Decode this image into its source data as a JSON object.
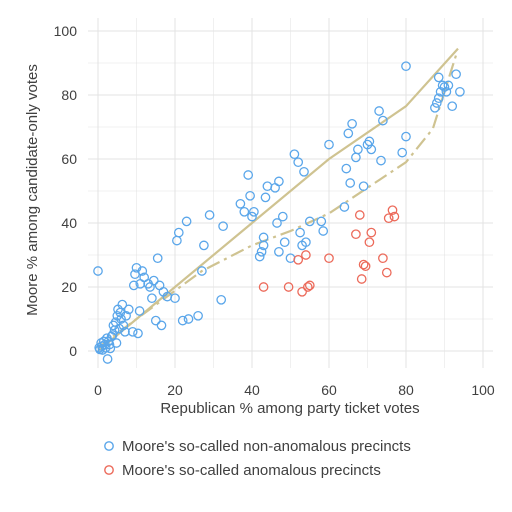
{
  "chart_data": {
    "type": "scatter",
    "title": "",
    "xlabel": "Republican % among party ticket votes",
    "ylabel": "Moore % among candidate-only votes",
    "xlim": [
      0,
      100
    ],
    "ylim": [
      0,
      100
    ],
    "x_ticks": [
      0,
      20,
      40,
      60,
      80,
      100
    ],
    "y_ticks": [
      0,
      20,
      40,
      60,
      80,
      100
    ],
    "grid": true,
    "legend_position": "bottom",
    "colors": {
      "non_anomalous": "#5aa6ea",
      "anomalous": "#ec6a5a",
      "fit_line": "#cfc391",
      "text": "#404040",
      "grid": "#e3e3e3"
    },
    "series": [
      {
        "name": "Moore's so-called non-anomalous precincts",
        "marker": "circle-open",
        "points": [
          [
            0,
            25
          ],
          [
            0.3,
            1
          ],
          [
            0.5,
            0.5
          ],
          [
            0.8,
            2.5
          ],
          [
            1,
            1.5
          ],
          [
            1.2,
            0.3
          ],
          [
            1.5,
            3
          ],
          [
            1.8,
            2
          ],
          [
            2,
            1
          ],
          [
            2.3,
            4
          ],
          [
            2.5,
            -2.5
          ],
          [
            2.7,
            3
          ],
          [
            3,
            2
          ],
          [
            3.2,
            0.8
          ],
          [
            3.5,
            4.5
          ],
          [
            3.8,
            5
          ],
          [
            4,
            8
          ],
          [
            4.3,
            6.5
          ],
          [
            4.6,
            9
          ],
          [
            4.8,
            2.5
          ],
          [
            5,
            11
          ],
          [
            5.2,
            13
          ],
          [
            5.5,
            7
          ],
          [
            5.8,
            12
          ],
          [
            6,
            10
          ],
          [
            6.3,
            14.5
          ],
          [
            6.6,
            8
          ],
          [
            7,
            6
          ],
          [
            7.3,
            11
          ],
          [
            8,
            13
          ],
          [
            9,
            6
          ],
          [
            9.3,
            20.5
          ],
          [
            9.6,
            24
          ],
          [
            10,
            26
          ],
          [
            10.4,
            5.5
          ],
          [
            10.8,
            12.5
          ],
          [
            11,
            21
          ],
          [
            11.5,
            25
          ],
          [
            12,
            23
          ],
          [
            13,
            21
          ],
          [
            13.5,
            20
          ],
          [
            14,
            16.5
          ],
          [
            14.5,
            22
          ],
          [
            15,
            9.5
          ],
          [
            15.5,
            29
          ],
          [
            16,
            20.5
          ],
          [
            16.5,
            8
          ],
          [
            17,
            18.5
          ],
          [
            18,
            17
          ],
          [
            20,
            16.5
          ],
          [
            20.5,
            34.5
          ],
          [
            21,
            37
          ],
          [
            22,
            9.5
          ],
          [
            23,
            40.5
          ],
          [
            23.5,
            10
          ],
          [
            26,
            11
          ],
          [
            27,
            25
          ],
          [
            27.5,
            33
          ],
          [
            29,
            42.5
          ],
          [
            32,
            16
          ],
          [
            32.5,
            39
          ],
          [
            37,
            46
          ],
          [
            38,
            43.5
          ],
          [
            39,
            55
          ],
          [
            39.5,
            48.5
          ],
          [
            40,
            42
          ],
          [
            40.5,
            43.5
          ],
          [
            42,
            29.5
          ],
          [
            42.5,
            31
          ],
          [
            43,
            33
          ],
          [
            43,
            35.5
          ],
          [
            43.5,
            48
          ],
          [
            44,
            51.5
          ],
          [
            46,
            51
          ],
          [
            46.5,
            40
          ],
          [
            47,
            53
          ],
          [
            47,
            31
          ],
          [
            48,
            42
          ],
          [
            48.5,
            34
          ],
          [
            50,
            29
          ],
          [
            51,
            61.5
          ],
          [
            52,
            59
          ],
          [
            52.5,
            37
          ],
          [
            53,
            33
          ],
          [
            53.5,
            56
          ],
          [
            54,
            34
          ],
          [
            55,
            40.5
          ],
          [
            58,
            40.5
          ],
          [
            58.5,
            37.5
          ],
          [
            60,
            64.5
          ],
          [
            64,
            45
          ],
          [
            64.5,
            57
          ],
          [
            65,
            68
          ],
          [
            65.5,
            52.5
          ],
          [
            66,
            71
          ],
          [
            67,
            60.5
          ],
          [
            67.5,
            63
          ],
          [
            69,
            51.5
          ],
          [
            70,
            64.5
          ],
          [
            70.5,
            65.5
          ],
          [
            71,
            63
          ],
          [
            73,
            75
          ],
          [
            73.5,
            59.5
          ],
          [
            74,
            72
          ],
          [
            79,
            62
          ],
          [
            80,
            67
          ],
          [
            80,
            89
          ],
          [
            87.5,
            76
          ],
          [
            88,
            77.5
          ],
          [
            88.5,
            79
          ],
          [
            88.5,
            85.5
          ],
          [
            89,
            81
          ],
          [
            89.5,
            83
          ],
          [
            90,
            82.5
          ],
          [
            90.5,
            81
          ],
          [
            91,
            83
          ],
          [
            92,
            76.5
          ],
          [
            93,
            86.5
          ],
          [
            94,
            81
          ]
        ]
      },
      {
        "name": "Moore's so-called anomalous precincts",
        "marker": "circle-open",
        "points": [
          [
            43,
            20
          ],
          [
            49.5,
            20
          ],
          [
            52,
            28.5
          ],
          [
            53,
            18.5
          ],
          [
            54,
            30
          ],
          [
            54.5,
            20
          ],
          [
            55,
            20.5
          ],
          [
            60,
            29
          ],
          [
            67,
            36.5
          ],
          [
            68,
            42.5
          ],
          [
            68.5,
            22.5
          ],
          [
            69,
            27
          ],
          [
            69.5,
            26.5
          ],
          [
            70.5,
            34
          ],
          [
            71,
            37
          ],
          [
            74,
            29
          ],
          [
            75,
            24.5
          ],
          [
            75.5,
            41.5
          ],
          [
            76.5,
            44
          ],
          [
            77,
            42
          ]
        ]
      }
    ],
    "fit_lines": [
      {
        "style": "solid",
        "points": [
          [
            0,
            0
          ],
          [
            20,
            20
          ],
          [
            40,
            40
          ],
          [
            60,
            60
          ],
          [
            80,
            76.5
          ],
          [
            93.5,
            94.5
          ]
        ]
      },
      {
        "style": "dashed",
        "points": [
          [
            0,
            1
          ],
          [
            10,
            10
          ],
          [
            27,
            25
          ],
          [
            40,
            33
          ],
          [
            50,
            37.5
          ],
          [
            60,
            43
          ],
          [
            70,
            51
          ],
          [
            80,
            59
          ],
          [
            87,
            69.5
          ],
          [
            93,
            92.5
          ]
        ]
      }
    ]
  }
}
